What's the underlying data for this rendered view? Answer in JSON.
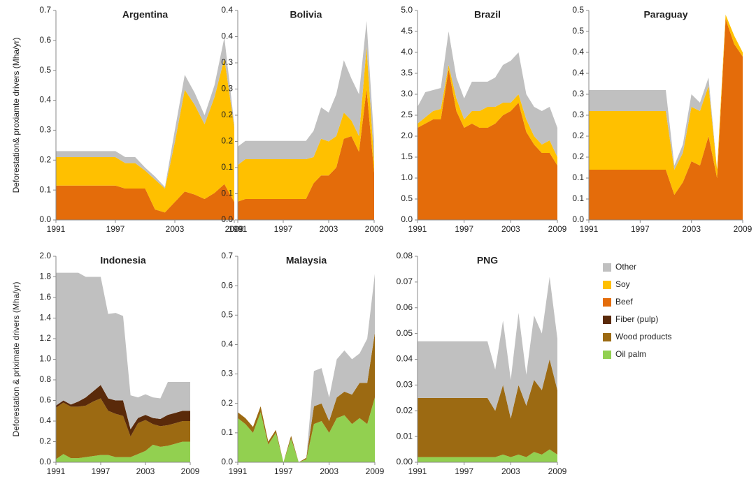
{
  "chart_data": [
    {
      "type": "area",
      "title": "Argentina",
      "ylabel": "Deforestation& proxiamte drivers (Mha/yr)",
      "x": [
        1991,
        1992,
        1993,
        1994,
        1995,
        1996,
        1997,
        1998,
        1999,
        2000,
        2001,
        2002,
        2003,
        2004,
        2005,
        2006,
        2007,
        2008,
        2009
      ],
      "xlim": [
        1991,
        2009
      ],
      "xticks": [
        1991,
        1997,
        2003,
        2009
      ],
      "ylim": [
        0,
        0.7
      ],
      "yticks": [
        {
          "value": 0,
          "label": "0.0"
        },
        0.1,
        0.2,
        0.3,
        0.4,
        0.5,
        0.6,
        0.7
      ],
      "series": [
        {
          "name": "Beef",
          "color": "#e46c0a",
          "values": [
            0.115,
            0.115,
            0.115,
            0.115,
            0.115,
            0.115,
            0.115,
            0.105,
            0.105,
            0.105,
            0.035,
            0.025,
            0.06,
            0.095,
            0.085,
            0.07,
            0.09,
            0.12,
            0.06
          ]
        },
        {
          "name": "Soy",
          "color": "#ffc000",
          "values": [
            0.095,
            0.095,
            0.095,
            0.095,
            0.095,
            0.095,
            0.095,
            0.085,
            0.085,
            0.06,
            0.1,
            0.08,
            0.2,
            0.34,
            0.3,
            0.25,
            0.32,
            0.42,
            0.25
          ]
        },
        {
          "name": "Other",
          "color": "#c0c0c0",
          "values": [
            0.02,
            0.02,
            0.02,
            0.02,
            0.02,
            0.02,
            0.02,
            0.02,
            0.02,
            0.01,
            0.01,
            0.005,
            0.04,
            0.05,
            0.04,
            0.03,
            0.04,
            0.07,
            0.01
          ]
        }
      ]
    },
    {
      "type": "area",
      "title": "Bolivia",
      "x": [
        1991,
        1992,
        1993,
        1994,
        1995,
        1996,
        1997,
        1998,
        1999,
        2000,
        2001,
        2002,
        2003,
        2004,
        2005,
        2006,
        2007,
        2008,
        2009
      ],
      "xlim": [
        1991,
        2009
      ],
      "xticks": [
        1991,
        1997,
        2003,
        2009
      ],
      "ylim": [
        0,
        0.4
      ],
      "yticks": [
        {
          "value": 0,
          "label": "0.0"
        },
        {
          "value": 0.05,
          "label": "0.1"
        },
        0.1,
        {
          "value": 0.15,
          "label": "0.2"
        },
        0.2,
        {
          "value": 0.25,
          "label": "0.3"
        },
        0.3,
        {
          "value": 0.35,
          "label": "0.4"
        },
        0.4
      ],
      "series": [
        {
          "name": "Beef",
          "color": "#e46c0a",
          "values": [
            0.035,
            0.04,
            0.04,
            0.04,
            0.04,
            0.04,
            0.04,
            0.04,
            0.04,
            0.04,
            0.07,
            0.085,
            0.085,
            0.1,
            0.155,
            0.16,
            0.13,
            0.25,
            0.09
          ]
        },
        {
          "name": "Soy",
          "color": "#ffc000",
          "values": [
            0.07,
            0.076,
            0.076,
            0.076,
            0.076,
            0.076,
            0.076,
            0.076,
            0.076,
            0.076,
            0.05,
            0.07,
            0.065,
            0.06,
            0.05,
            0.03,
            0.03,
            0.08,
            0.02
          ]
        },
        {
          "name": "Other",
          "color": "#c0c0c0",
          "values": [
            0.035,
            0.035,
            0.035,
            0.035,
            0.035,
            0.035,
            0.035,
            0.035,
            0.035,
            0.035,
            0.05,
            0.06,
            0.055,
            0.08,
            0.1,
            0.08,
            0.08,
            0.05,
            0.04
          ]
        }
      ]
    },
    {
      "type": "area",
      "title": "Brazil",
      "x": [
        1991,
        1992,
        1993,
        1994,
        1995,
        1996,
        1997,
        1998,
        1999,
        2000,
        2001,
        2002,
        2003,
        2004,
        2005,
        2006,
        2007,
        2008,
        2009
      ],
      "xlim": [
        1991,
        2009
      ],
      "xticks": [
        1991,
        1997,
        2003,
        2009
      ],
      "ylim": [
        0,
        5
      ],
      "yticks": [
        {
          "value": 0,
          "label": "0.0"
        },
        0.5,
        {
          "value": 1,
          "label": "1.0"
        },
        1.5,
        {
          "value": 2,
          "label": "2.0"
        },
        2.5,
        {
          "value": 3,
          "label": "3.0"
        },
        3.5,
        {
          "value": 4,
          "label": "4.0"
        },
        4.5,
        {
          "value": 5,
          "label": "5.0"
        }
      ],
      "series": [
        {
          "name": "Beef",
          "color": "#e46c0a",
          "values": [
            2.2,
            2.3,
            2.4,
            2.4,
            3.6,
            2.6,
            2.2,
            2.3,
            2.2,
            2.2,
            2.3,
            2.5,
            2.6,
            2.8,
            2.1,
            1.8,
            1.6,
            1.6,
            1.3
          ]
        },
        {
          "name": "Soy",
          "color": "#ffc000",
          "values": [
            0.1,
            0.15,
            0.2,
            0.25,
            0.1,
            0.3,
            0.2,
            0.3,
            0.4,
            0.5,
            0.4,
            0.3,
            0.2,
            0.2,
            0.3,
            0.2,
            0.2,
            0.3,
            0.2
          ]
        },
        {
          "name": "Other",
          "color": "#c0c0c0",
          "values": [
            0.4,
            0.6,
            0.5,
            0.5,
            0.8,
            0.5,
            0.5,
            0.7,
            0.7,
            0.6,
            0.7,
            0.9,
            1.0,
            1.0,
            0.6,
            0.7,
            0.8,
            0.8,
            0.7
          ]
        }
      ]
    },
    {
      "type": "area",
      "title": "Paraguay",
      "x": [
        1991,
        1992,
        1993,
        1994,
        1995,
        1996,
        1997,
        1998,
        1999,
        2000,
        2001,
        2002,
        2003,
        2004,
        2005,
        2006,
        2007,
        2008,
        2009
      ],
      "xlim": [
        1991,
        2009
      ],
      "xticks": [
        1991,
        1997,
        2003,
        2009
      ],
      "ylim": [
        0,
        0.5
      ],
      "yticks": [
        {
          "value": 0,
          "label": "0.0"
        },
        {
          "value": 0.05,
          "label": "0.1"
        },
        0.1,
        {
          "value": 0.15,
          "label": "0.2"
        },
        0.2,
        {
          "value": 0.25,
          "label": "0.3"
        },
        0.3,
        {
          "value": 0.35,
          "label": "0.4"
        },
        0.4,
        {
          "value": 0.45,
          "label": "0.5"
        },
        0.5
      ],
      "series": [
        {
          "name": "Beef",
          "color": "#e46c0a",
          "values": [
            0.12,
            0.12,
            0.12,
            0.12,
            0.12,
            0.12,
            0.12,
            0.12,
            0.12,
            0.12,
            0.06,
            0.09,
            0.14,
            0.13,
            0.2,
            0.1,
            0.48,
            0.42,
            0.39
          ]
        },
        {
          "name": "Soy",
          "color": "#ffc000",
          "values": [
            0.14,
            0.14,
            0.14,
            0.14,
            0.14,
            0.14,
            0.14,
            0.14,
            0.14,
            0.14,
            0.06,
            0.07,
            0.13,
            0.13,
            0.12,
            0.02,
            0.01,
            0.02,
            0.01
          ]
        },
        {
          "name": "Other",
          "color": "#c0c0c0",
          "values": [
            0.05,
            0.05,
            0.05,
            0.05,
            0.05,
            0.05,
            0.05,
            0.05,
            0.05,
            0.05,
            0.01,
            0.02,
            0.03,
            0.02,
            0.02,
            0,
            0,
            0,
            0
          ]
        }
      ]
    },
    {
      "type": "area",
      "title": "Indonesia",
      "ylabel": "Deforestation & priximate drivers (Mha/yr)",
      "x": [
        1991,
        1992,
        1993,
        1994,
        1995,
        1996,
        1997,
        1998,
        1999,
        2000,
        2001,
        2002,
        2003,
        2004,
        2005,
        2006,
        2007,
        2008,
        2009
      ],
      "xlim": [
        1991,
        2009
      ],
      "xticks": [
        1991,
        1997,
        2003,
        2009
      ],
      "ylim": [
        0,
        2
      ],
      "yticks": [
        {
          "value": 0,
          "label": "0.0"
        },
        0.2,
        0.4,
        0.6,
        0.8,
        {
          "value": 1,
          "label": "1.0"
        },
        1.2,
        1.4,
        1.6,
        1.8,
        {
          "value": 2,
          "label": "2.0"
        }
      ],
      "series": [
        {
          "name": "Oil palm",
          "color": "#92d050",
          "values": [
            0.03,
            0.08,
            0.04,
            0.04,
            0.05,
            0.06,
            0.07,
            0.07,
            0.05,
            0.05,
            0.05,
            0.08,
            0.11,
            0.17,
            0.15,
            0.16,
            0.18,
            0.2,
            0.2
          ]
        },
        {
          "name": "Wood products",
          "color": "#9c6a12",
          "values": [
            0.5,
            0.5,
            0.5,
            0.5,
            0.5,
            0.53,
            0.55,
            0.43,
            0.42,
            0.4,
            0.2,
            0.3,
            0.3,
            0.2,
            0.2,
            0.2,
            0.2,
            0.2,
            0.2
          ]
        },
        {
          "name": "Fiber (pulp)",
          "color": "#5a2a0a",
          "values": [
            0.02,
            0.02,
            0.02,
            0.05,
            0.08,
            0.1,
            0.13,
            0.12,
            0.13,
            0.15,
            0.07,
            0.05,
            0.05,
            0.06,
            0.07,
            0.1,
            0.1,
            0.1,
            0.1
          ]
        },
        {
          "name": "Other",
          "color": "#c0c0c0",
          "values": [
            1.29,
            1.24,
            1.28,
            1.25,
            1.17,
            1.11,
            1.05,
            0.82,
            0.85,
            0.82,
            0.33,
            0.2,
            0.2,
            0.2,
            0.2,
            0.32,
            0.3,
            0.28,
            0.28
          ]
        }
      ]
    },
    {
      "type": "area",
      "title": "Malaysia",
      "x": [
        1991,
        1992,
        1993,
        1994,
        1995,
        1996,
        1997,
        1998,
        1999,
        2000,
        2001,
        2002,
        2003,
        2004,
        2005,
        2006,
        2007,
        2008,
        2009
      ],
      "xlim": [
        1991,
        2009
      ],
      "xticks": [
        1991,
        1997,
        2003,
        2009
      ],
      "ylim": [
        0,
        0.7
      ],
      "yticks": [
        {
          "value": 0,
          "label": "0.0"
        },
        0.1,
        0.2,
        0.3,
        0.4,
        0.5,
        0.6,
        0.7
      ],
      "series": [
        {
          "name": "Oil palm",
          "color": "#92d050",
          "values": [
            0.15,
            0.13,
            0.1,
            0.17,
            0.06,
            0.1,
            0,
            0.08,
            0,
            0.01,
            0.13,
            0.14,
            0.1,
            0.15,
            0.16,
            0.13,
            0.15,
            0.13,
            0.22
          ]
        },
        {
          "name": "Wood products",
          "color": "#9c6a12",
          "values": [
            0.02,
            0.02,
            0.02,
            0.02,
            0.01,
            0.01,
            0,
            0.01,
            0,
            0.005,
            0.06,
            0.06,
            0.04,
            0.07,
            0.08,
            0.1,
            0.12,
            0.14,
            0.22
          ]
        },
        {
          "name": "Other",
          "color": "#c0c0c0",
          "values": [
            0,
            0,
            0,
            0,
            0,
            0,
            0,
            0,
            0,
            0,
            0.12,
            0.12,
            0.08,
            0.13,
            0.14,
            0.12,
            0.1,
            0.15,
            0.2
          ]
        }
      ]
    },
    {
      "type": "area",
      "title": "PNG",
      "x": [
        1991,
        1992,
        1993,
        1994,
        1995,
        1996,
        1997,
        1998,
        1999,
        2000,
        2001,
        2002,
        2003,
        2004,
        2005,
        2006,
        2007,
        2008,
        2009
      ],
      "xlim": [
        1991,
        2009
      ],
      "xticks": [
        1991,
        1997,
        2003,
        2009
      ],
      "ylim": [
        0,
        0.08
      ],
      "yticks": [
        {
          "value": 0,
          "label": "0.00"
        },
        0.01,
        0.02,
        0.03,
        0.04,
        0.05,
        0.06,
        0.07,
        0.08
      ],
      "series": [
        {
          "name": "Oil palm",
          "color": "#92d050",
          "values": [
            0.002,
            0.002,
            0.002,
            0.002,
            0.002,
            0.002,
            0.002,
            0.002,
            0.002,
            0.002,
            0.002,
            0.003,
            0.002,
            0.003,
            0.002,
            0.004,
            0.003,
            0.005,
            0.003
          ]
        },
        {
          "name": "Wood products",
          "color": "#9c6a12",
          "values": [
            0.023,
            0.023,
            0.023,
            0.023,
            0.023,
            0.023,
            0.023,
            0.023,
            0.023,
            0.023,
            0.018,
            0.027,
            0.015,
            0.027,
            0.02,
            0.028,
            0.025,
            0.035,
            0.025
          ]
        },
        {
          "name": "Other",
          "color": "#c0c0c0",
          "values": [
            0.022,
            0.022,
            0.022,
            0.022,
            0.022,
            0.022,
            0.022,
            0.022,
            0.022,
            0.022,
            0.016,
            0.025,
            0.015,
            0.028,
            0.012,
            0.025,
            0.022,
            0.032,
            0.02
          ]
        }
      ]
    }
  ]
}
